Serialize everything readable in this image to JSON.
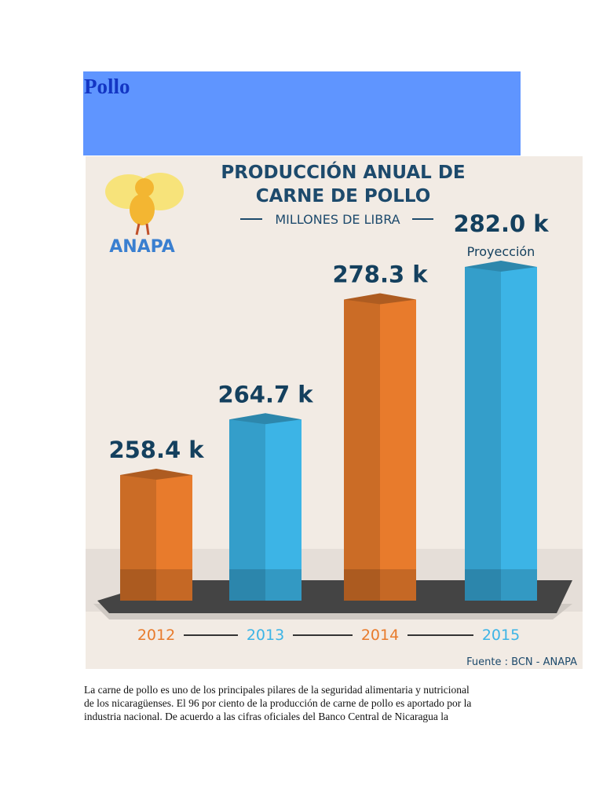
{
  "header": {
    "title": "Pollo"
  },
  "chart_data": {
    "type": "bar",
    "title": [
      "PRODUCCIÓN ANUAL DE",
      "CARNE DE POLLO"
    ],
    "subtitle": "MILLONES DE LIBRA",
    "logo": "ANAPA",
    "categories": [
      "2012",
      "2013",
      "2014",
      "2015"
    ],
    "values": [
      258.4,
      264.7,
      278.3,
      282.0
    ],
    "value_labels": [
      "258.4 k",
      "264.7 k",
      "278.3 k",
      "282.0 k"
    ],
    "colors": [
      "#e87b2c",
      "#3cb4e6",
      "#e87b2c",
      "#3cb4e6"
    ],
    "annotation": "Proyección",
    "source": "Fuente : BCN - ANAPA"
  },
  "body": {
    "lines": [
      "La carne de pollo es uno de los principales pilares de la seguridad alimentaria y nutricional",
      "de los nicaragüenses. El 96 por ciento de la producción de carne de pollo es aportado por la",
      "industria nacional. De acuerdo a las cifras oficiales del Banco Central de Nicaragua la"
    ]
  }
}
